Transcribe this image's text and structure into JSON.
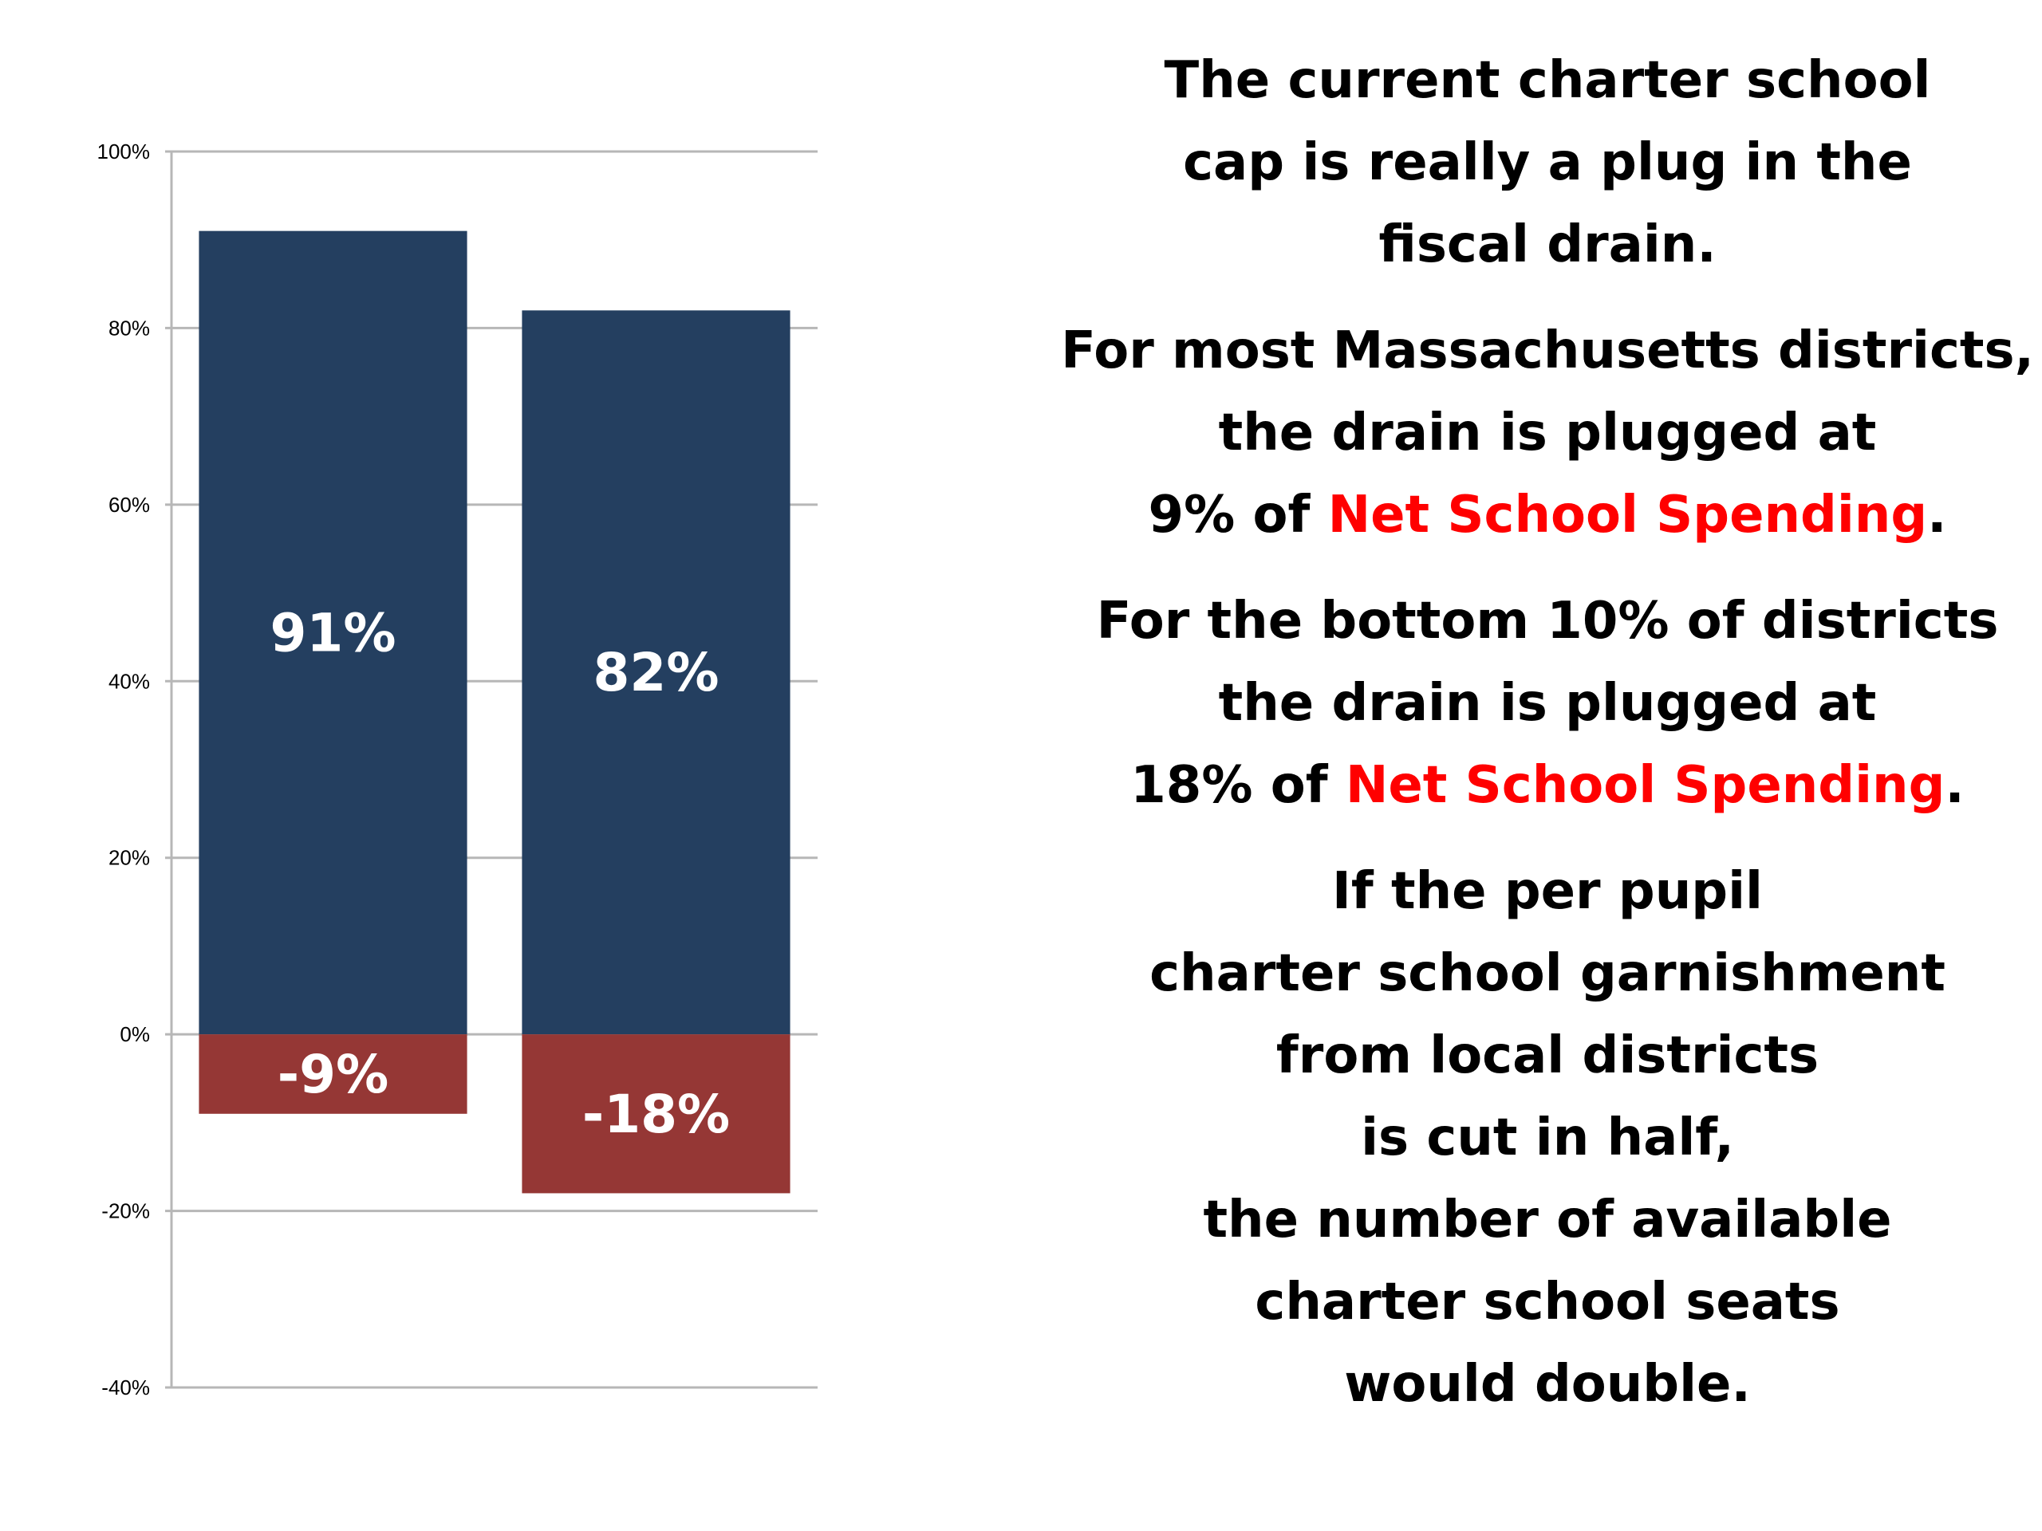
{
  "chart_data": {
    "type": "bar",
    "stacked": true,
    "categories": [
      "",
      ""
    ],
    "series": [
      {
        "values": [
          91,
          82
        ],
        "color": "#243f60",
        "labels": [
          "91%",
          "82%"
        ]
      },
      {
        "values": [
          -9,
          -18
        ],
        "color": "#953735",
        "labels": [
          "-9%",
          "-18%"
        ]
      }
    ],
    "ylim": [
      -40,
      100
    ],
    "yticks": [
      {
        "value": 100,
        "label": "100%"
      },
      {
        "value": 80,
        "label": "80%"
      },
      {
        "value": 60,
        "label": "60%"
      },
      {
        "value": 40,
        "label": "40%"
      },
      {
        "value": 20,
        "label": "20%"
      },
      {
        "value": 0,
        "label": "0%"
      },
      {
        "value": -20,
        "label": "-20%"
      },
      {
        "value": -40,
        "label": "-40%"
      }
    ],
    "grid": true,
    "gridline_color": "#b7b7b7",
    "legend": "none",
    "title": "",
    "xlabel": "",
    "ylabel": ""
  },
  "text_panel": {
    "highlight_color": "#ff0000",
    "paragraphs": [
      {
        "lines": [
          "The current charter school",
          "cap is really a plug in the",
          "fiscal drain."
        ]
      },
      {
        "lines": [
          "For most Massachusetts districts,",
          "the drain is plugged at"
        ],
        "last": {
          "before": "9% of ",
          "highlight": "Net School Spending",
          "after": "."
        }
      },
      {
        "lines": [
          "For the bottom 10% of districts",
          "the drain is plugged at"
        ],
        "last": {
          "before": "18% of ",
          "highlight": "Net School Spending",
          "after": "."
        }
      },
      {
        "lines": [
          "If the per pupil",
          "charter school garnishment",
          "from local districts",
          "is cut in half,",
          "the number of available",
          "charter school seats",
          "would double."
        ]
      }
    ]
  }
}
